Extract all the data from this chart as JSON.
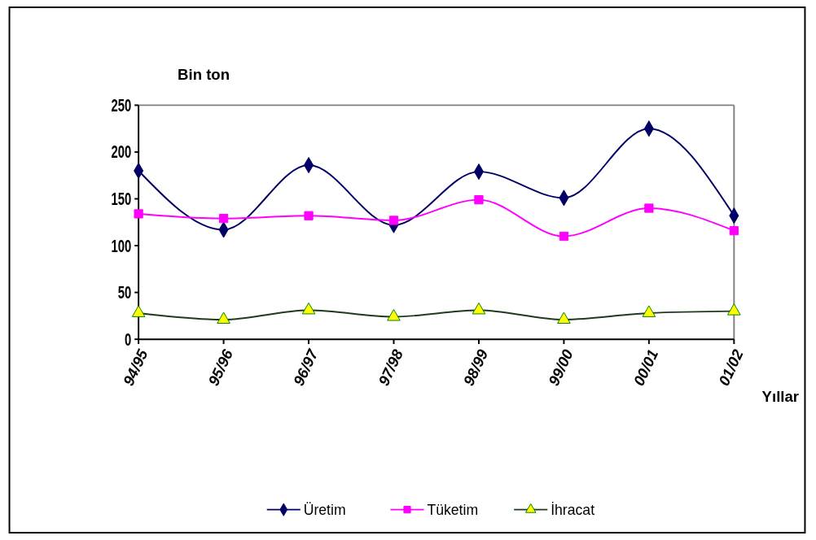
{
  "chart_data": {
    "type": "line",
    "ylabel": "Bin ton",
    "xlabel": "Yıllar",
    "categories": [
      "94/95",
      "95/96",
      "96/97",
      "97/98",
      "98/99",
      "99/00",
      "00/01",
      "01/02"
    ],
    "ylim": [
      0,
      250
    ],
    "yticks": [
      0,
      50,
      100,
      150,
      200,
      250
    ],
    "grid": false,
    "legend": "bottom",
    "series": [
      {
        "name": "Üretim",
        "color": "#000066",
        "marker": "diamond",
        "values": [
          180,
          117,
          186,
          122,
          179,
          151,
          225,
          132
        ]
      },
      {
        "name": "Tüketim",
        "color": "#ff00ff",
        "marker": "square",
        "values": [
          134,
          129,
          132,
          127,
          149,
          110,
          140,
          116
        ]
      },
      {
        "name": "İhracat",
        "color": "#1f3a1f",
        "marker": "triangle",
        "values": [
          28,
          21,
          31,
          24,
          31,
          21,
          28,
          30
        ]
      }
    ]
  }
}
